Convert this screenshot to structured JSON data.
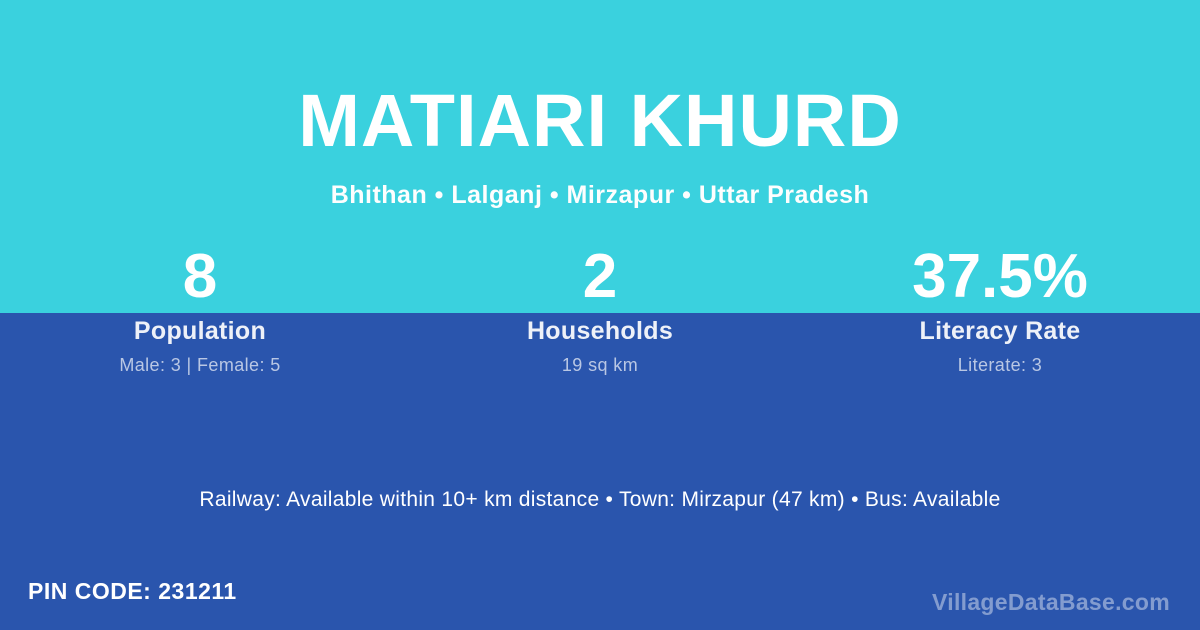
{
  "theme": {
    "cyan": "#3ad1de",
    "blue": "#2a55ad",
    "muted": "#b9c7e4",
    "watermark": "rgba(255,255,255,0.42)",
    "text": "#ffffff"
  },
  "header": {
    "title": "MATIARI KHURD",
    "subtitle": "Bhithan • Lalganj • Mirzapur • Uttar Pradesh"
  },
  "stats": [
    {
      "value": "8",
      "label": "Population",
      "detail": "Male: 3 | Female: 5"
    },
    {
      "value": "2",
      "label": "Households",
      "detail": "19 sq km"
    },
    {
      "value": "37.5%",
      "label": "Literacy Rate",
      "detail": "Literate: 3"
    }
  ],
  "amenities": {
    "line": "Railway: Available within 10+ km distance  •  Town: Mirzapur (47 km)  •  Bus: Available"
  },
  "footer": {
    "pin_label": "PIN CODE: 231211",
    "watermark": "VillageDataBase.com"
  }
}
